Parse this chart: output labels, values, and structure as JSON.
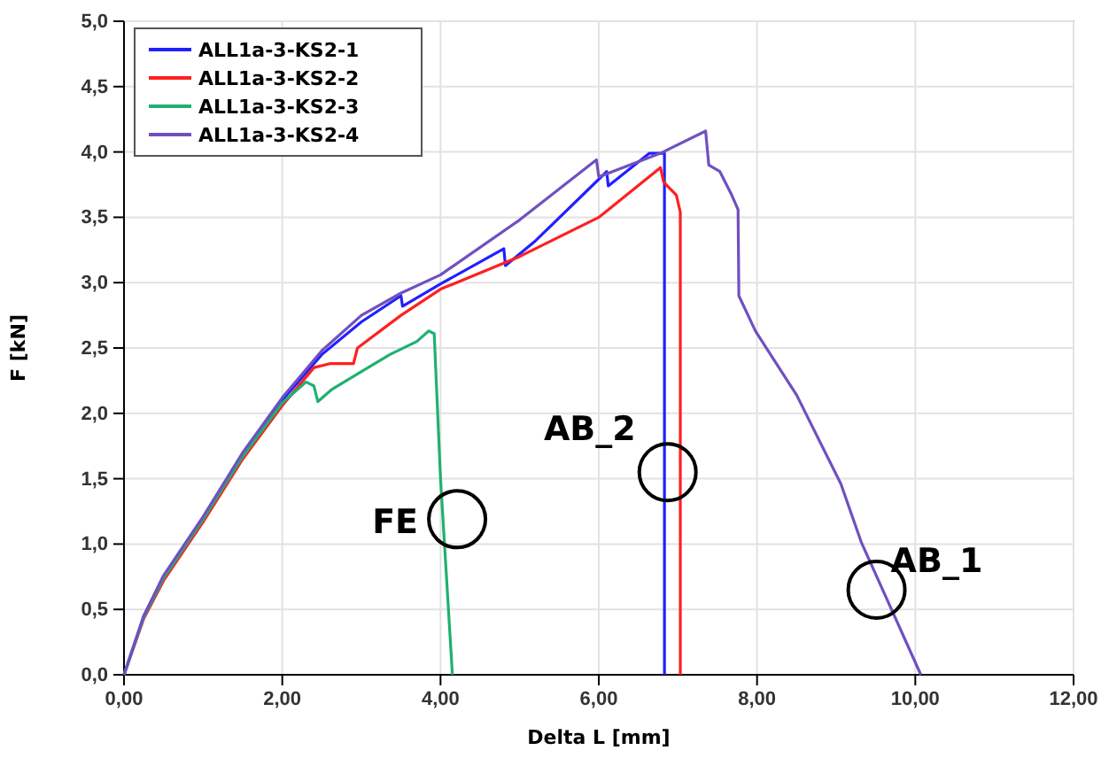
{
  "chart_data": {
    "type": "line",
    "xlabel": "Delta L [mm]",
    "ylabel": "F [kN]",
    "xlim": [
      0,
      12
    ],
    "ylim": [
      0,
      5
    ],
    "xticks": [
      {
        "value": 0,
        "label": "0,00"
      },
      {
        "value": 2,
        "label": "2,00"
      },
      {
        "value": 4,
        "label": "4,00"
      },
      {
        "value": 6,
        "label": "6,00"
      },
      {
        "value": 8,
        "label": "8,00"
      },
      {
        "value": 10,
        "label": "10,00"
      },
      {
        "value": 12,
        "label": "12,00"
      }
    ],
    "yticks": [
      {
        "value": 0,
        "label": "0,0"
      },
      {
        "value": 0.5,
        "label": "0,5"
      },
      {
        "value": 1,
        "label": "1,0"
      },
      {
        "value": 1.5,
        "label": "1,5"
      },
      {
        "value": 2,
        "label": "2,0"
      },
      {
        "value": 2.5,
        "label": "2,5"
      },
      {
        "value": 3,
        "label": "3,0"
      },
      {
        "value": 3.5,
        "label": "3,5"
      },
      {
        "value": 4,
        "label": "4,0"
      },
      {
        "value": 4.5,
        "label": "4,5"
      },
      {
        "value": 5,
        "label": "5,0"
      }
    ],
    "grid": true,
    "legend": "top left",
    "marker": "none",
    "line_style": "solid",
    "series": [
      {
        "name": "ALL1a-3-KS2-1",
        "color": "#2020ff",
        "x": [
          0,
          0.25,
          0.5,
          1,
          1.5,
          2,
          2.5,
          3,
          3.5,
          3.52,
          4,
          4.8,
          4.82,
          5.2,
          6.1,
          6.12,
          6.64,
          6.8,
          6.83,
          6.83
        ],
        "values": [
          0,
          0.45,
          0.75,
          1.2,
          1.68,
          2.1,
          2.45,
          2.7,
          2.9,
          2.82,
          2.99,
          3.26,
          3.13,
          3.32,
          3.85,
          3.74,
          3.99,
          3.99,
          3.99,
          0
        ]
      },
      {
        "name": "ALL1a-3-KS2-2",
        "color": "#ff2020",
        "x": [
          0,
          0.25,
          0.5,
          1,
          1.5,
          2,
          2.4,
          2.6,
          2.9,
          2.95,
          3.5,
          4,
          5,
          6,
          6.78,
          6.82,
          6.98,
          7.03,
          7.03
        ],
        "values": [
          0,
          0.43,
          0.72,
          1.17,
          1.65,
          2.06,
          2.35,
          2.38,
          2.38,
          2.5,
          2.75,
          2.95,
          3.2,
          3.5,
          3.88,
          3.77,
          3.67,
          3.54,
          0
        ]
      },
      {
        "name": "ALL1a-3-KS2-3",
        "color": "#20b070",
        "x": [
          0,
          0.25,
          0.5,
          1,
          1.5,
          2,
          2.3,
          2.4,
          2.45,
          2.62,
          3,
          3.36,
          3.7,
          3.85,
          3.92,
          4,
          4.15
        ],
        "values": [
          0,
          0.44,
          0.74,
          1.19,
          1.67,
          2.08,
          2.24,
          2.21,
          2.09,
          2.18,
          2.32,
          2.45,
          2.55,
          2.63,
          2.61,
          1.5,
          0
        ]
      },
      {
        "name": "ALL1a-3-KS2-4",
        "color": "#7050c0",
        "x": [
          0,
          0.25,
          0.5,
          1,
          1.5,
          2,
          2.5,
          3,
          3.5,
          4,
          5,
          5.97,
          6.0,
          6.78,
          7.35,
          7.39,
          7.53,
          7.68,
          7.76,
          7.77,
          7.98,
          8.5,
          9.06,
          9.32,
          10.07
        ],
        "values": [
          0,
          0.45,
          0.76,
          1.21,
          1.7,
          2.12,
          2.48,
          2.75,
          2.92,
          3.06,
          3.48,
          3.94,
          3.81,
          3.99,
          4.16,
          3.9,
          3.85,
          3.67,
          3.56,
          2.9,
          2.63,
          2.14,
          1.46,
          1.01,
          0
        ]
      }
    ],
    "annotations": [
      {
        "text": "FE",
        "x": 4.21,
        "y": 1.19
      },
      {
        "text": "AB_2",
        "x": 6.87,
        "y": 1.55
      },
      {
        "text": "AB_1",
        "x": 9.51,
        "y": 0.65
      }
    ]
  }
}
